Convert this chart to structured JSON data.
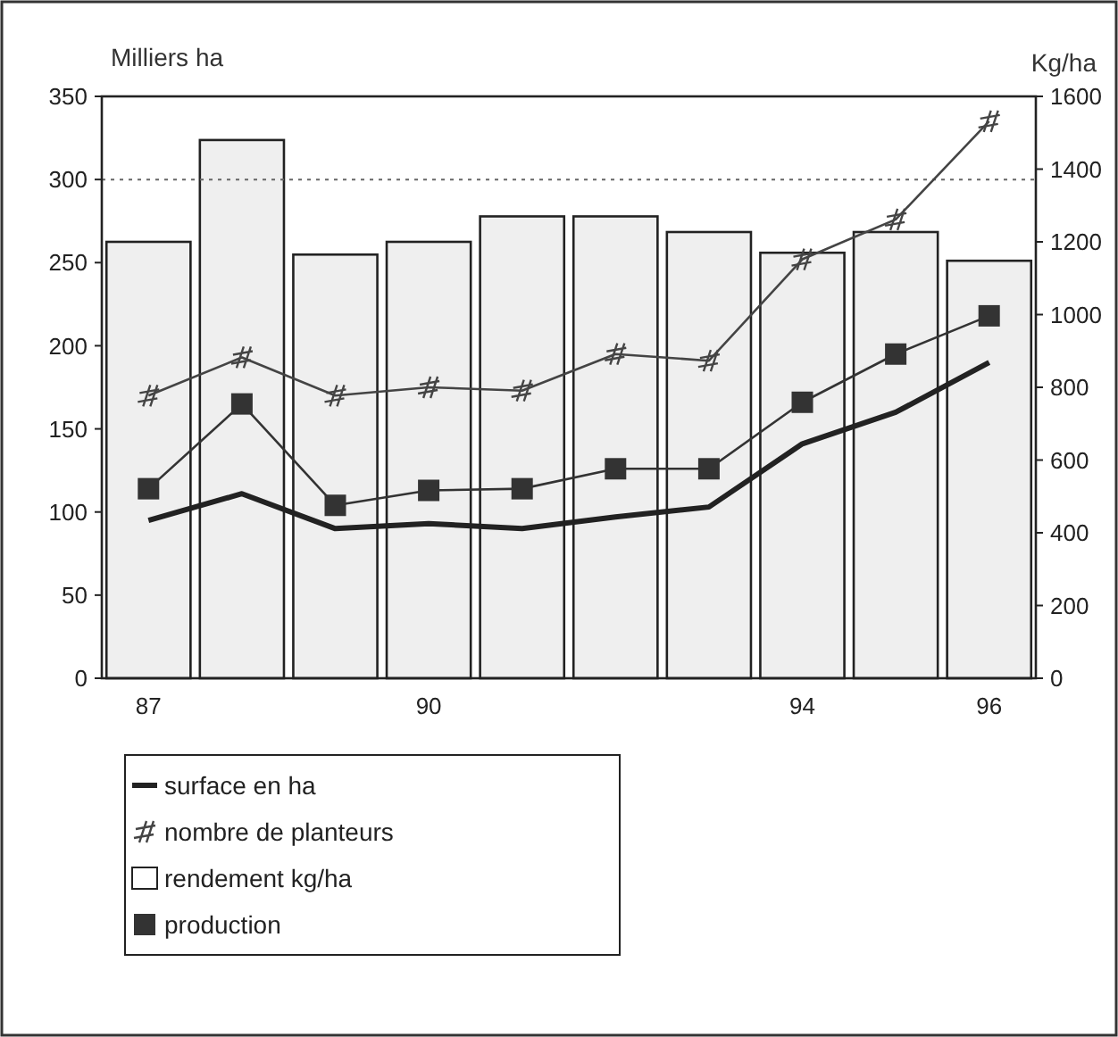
{
  "chart_data": {
    "type": "line",
    "ylabel": "Milliers ha",
    "y2label": "Kg/ha",
    "categories": [
      "87",
      null,
      null,
      "90",
      null,
      null,
      null,
      "94",
      null,
      "96"
    ],
    "ylim": [
      0,
      350
    ],
    "yticks": [
      0,
      50,
      100,
      150,
      200,
      250,
      300,
      350
    ],
    "y2lim": [
      0,
      1600
    ],
    "y2ticks": [
      0,
      200,
      400,
      600,
      800,
      1000,
      1200,
      1400,
      1600
    ],
    "series": [
      {
        "name": "surface en ha",
        "color": "#222222",
        "marker": "none",
        "values": [
          95,
          111,
          90,
          93,
          90,
          97,
          103,
          141,
          160,
          190
        ]
      },
      {
        "name": "nombre de planteurs",
        "color": "#444444",
        "marker": "cross",
        "values": [
          170,
          193,
          170,
          175,
          173,
          195,
          191,
          252,
          276,
          335
        ]
      },
      {
        "name": "rendement kg/ha",
        "type": "bar",
        "axis": "y2",
        "color": "#efefef",
        "values": [
          1200,
          1480,
          1165,
          1200,
          1270,
          1270,
          1227,
          1170,
          1227,
          1148
        ]
      },
      {
        "name": "production",
        "color": "#333333",
        "marker": "square",
        "values": [
          114,
          165,
          104,
          113,
          114,
          126,
          126,
          166,
          195,
          218
        ]
      }
    ],
    "ref_lines": [
      {
        "axis": "y",
        "value": 300,
        "color": "#666666",
        "line_style": "dotted"
      }
    ],
    "legend": "bottom",
    "grid": false
  }
}
